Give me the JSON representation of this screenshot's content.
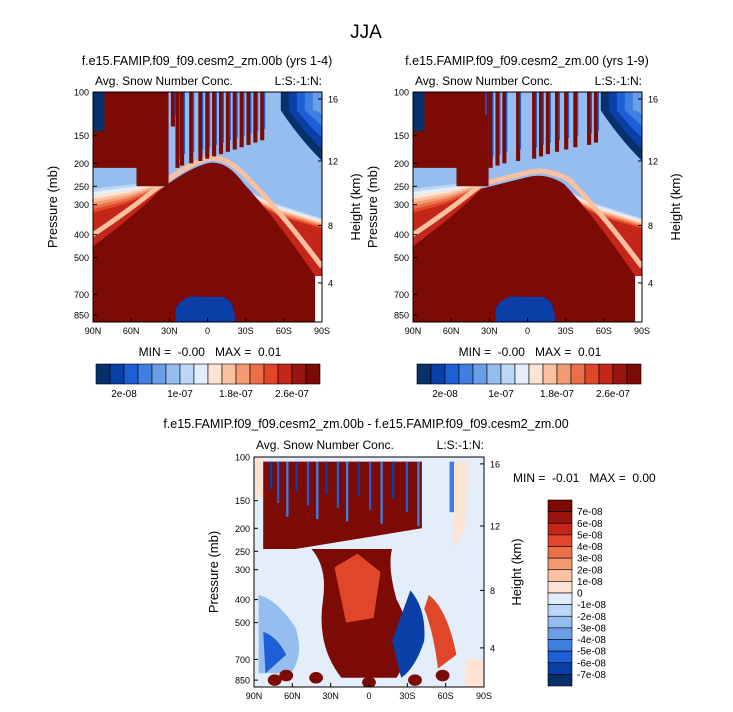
{
  "figure_title": "JJA",
  "colors": {
    "blue_red": [
      "#08306b",
      "#0b3fa8",
      "#1f5fd6",
      "#3f7fe0",
      "#6a9fe8",
      "#95bdf0",
      "#bcd6f6",
      "#e4eefb",
      "#fde3d4",
      "#f9c0a2",
      "#f49a72",
      "#ee6f47",
      "#e0472a",
      "#c4261a",
      "#9a1410",
      "#7c0a05"
    ],
    "diff": [
      "#08306b",
      "#0b3fa8",
      "#1f5fd6",
      "#3f7fe0",
      "#6a9fe8",
      "#95bdf0",
      "#bcd6f6",
      "#e4eefb",
      "#fde3d4",
      "#f9c0a2",
      "#f49a72",
      "#ee6f47",
      "#e0472a",
      "#c4261a",
      "#9a1410",
      "#7c0a05"
    ]
  },
  "chart_data": [
    {
      "type": "heatmap",
      "title": "f.e15.FAMIP.f09_f09.cesm2_zm.00b (yrs 1-4)",
      "subtitle_left": "Avg. Snow Number Conc.",
      "subtitle_right": "L:S:-1:N:",
      "xlabel": "",
      "ylabel": "Pressure (mb)",
      "ylabel_right": "Height (km)",
      "x_ticks": [
        "90N",
        "60N",
        "30N",
        "0",
        "30S",
        "60S",
        "90S"
      ],
      "y_ticks": [
        "100",
        "150",
        "200",
        "250",
        "300",
        "400",
        "500",
        "700",
        "850"
      ],
      "y_right_ticks": [
        "16",
        "12",
        "8",
        "4"
      ],
      "min_max_text": "MIN =  -0.00   MAX =  0.01",
      "colorbar_labels": [
        "2e-08",
        "1e-07",
        "1.8e-07",
        "2.6e-07"
      ]
    },
    {
      "type": "heatmap",
      "title": "f.e15.FAMIP.f09_f09.cesm2_zm.00 (yrs 1-9)",
      "subtitle_left": "Avg. Snow Number Conc.",
      "subtitle_right": "L:S:-1:N:",
      "xlabel": "",
      "ylabel": "Pressure (mb)",
      "ylabel_right": "Height (km)",
      "x_ticks": [
        "90N",
        "60N",
        "30N",
        "0",
        "30S",
        "60S",
        "90S"
      ],
      "y_ticks": [
        "100",
        "150",
        "200",
        "250",
        "300",
        "400",
        "500",
        "700",
        "850"
      ],
      "y_right_ticks": [
        "16",
        "12",
        "8",
        "4"
      ],
      "min_max_text": "MIN =  -0.00   MAX =  0.01",
      "colorbar_labels": [
        "2e-08",
        "1e-07",
        "1.8e-07",
        "2.6e-07"
      ]
    },
    {
      "type": "heatmap",
      "title": "f.e15.FAMIP.f09_f09.cesm2_zm.00b - f.e15.FAMIP.f09_f09.cesm2_zm.00",
      "subtitle_left": "Avg. Snow Number Conc.",
      "subtitle_right": "L:S:-1:N:",
      "xlabel": "",
      "ylabel": "Pressure (mb)",
      "ylabel_right": "Height (km)",
      "x_ticks": [
        "90N",
        "60N",
        "30N",
        "0",
        "30S",
        "60S",
        "90S"
      ],
      "y_ticks": [
        "100",
        "150",
        "200",
        "250",
        "300",
        "400",
        "500",
        "700",
        "850"
      ],
      "y_right_ticks": [
        "16",
        "12",
        "8",
        "4"
      ],
      "min_max_text": "MIN =  -0.01   MAX =  0.00",
      "colorbar_labels": [
        "7e-08",
        "6e-08",
        "5e-08",
        "4e-08",
        "3e-08",
        "2e-08",
        "1e-08",
        "0",
        "-1e-08",
        "-2e-08",
        "-3e-08",
        "-4e-08",
        "-5e-08",
        "-6e-08",
        "-7e-08"
      ]
    }
  ]
}
